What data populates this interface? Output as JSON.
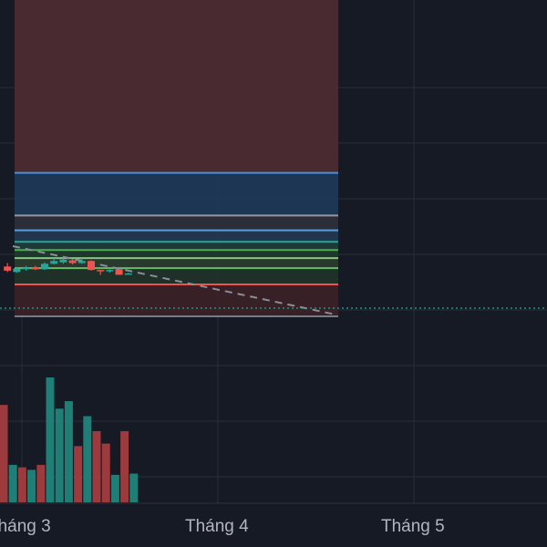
{
  "chart_data": {
    "type": "candlestick",
    "title": "",
    "x_ticks": [
      "Tháng 3",
      "Tháng 4",
      "Tháng 5"
    ],
    "grid": true,
    "colors": {
      "background": "#161a25",
      "grid": "#2a2e39",
      "up": "#26a69a",
      "down": "#ef5350",
      "volume_up": "#1f7f76",
      "volume_down": "#9c3a3d",
      "projection_line": "#8a8e98",
      "last_price_line": "#26a69a"
    },
    "fib_levels": [
      {
        "level": 2.618,
        "line_color": "#4f2a31",
        "fill_color": "#4a2a31"
      },
      {
        "level": 1.618,
        "line_color": "#4a90d9",
        "fill_color": "#1d3a5a"
      },
      {
        "level": 1.0,
        "line_color": "#9598a1",
        "fill_color": "#2d313b"
      },
      {
        "level": 0.786,
        "line_color": "#5aa0e0",
        "fill_color": "#243a52"
      },
      {
        "level": 0.618,
        "line_color": "#26a69a",
        "fill_color": "#1e3d3b"
      },
      {
        "level": 0.5,
        "line_color": "#4caf50",
        "fill_color": "#1f3a2c"
      },
      {
        "level": 0.382,
        "line_color": "#81c784",
        "fill_color": "#2b3d2e"
      },
      {
        "level": 0.236,
        "line_color": "#66bb6a",
        "fill_color": "#1f3328"
      },
      {
        "level": 0.0,
        "line_color": "#ef5350",
        "fill_color": "#3b2127"
      }
    ],
    "candles": [
      {
        "x": 1,
        "open": 0.26,
        "high": 0.31,
        "low": 0.18,
        "close": 0.2
      },
      {
        "x": 2,
        "open": 0.18,
        "high": 0.24,
        "low": 0.17,
        "close": 0.23
      },
      {
        "x": 3,
        "open": 0.23,
        "high": 0.27,
        "low": 0.2,
        "close": 0.24
      },
      {
        "x": 4,
        "open": 0.25,
        "high": 0.27,
        "low": 0.21,
        "close": 0.22
      },
      {
        "x": 5,
        "open": 0.22,
        "high": 0.32,
        "low": 0.21,
        "close": 0.3
      },
      {
        "x": 6,
        "open": 0.3,
        "high": 0.38,
        "low": 0.29,
        "close": 0.34
      },
      {
        "x": 7,
        "open": 0.32,
        "high": 0.38,
        "low": 0.3,
        "close": 0.36
      },
      {
        "x": 8,
        "open": 0.35,
        "high": 0.37,
        "low": 0.29,
        "close": 0.31
      },
      {
        "x": 9,
        "open": 0.31,
        "high": 0.38,
        "low": 0.3,
        "close": 0.34
      },
      {
        "x": 10,
        "open": 0.34,
        "high": 0.35,
        "low": 0.2,
        "close": 0.21
      },
      {
        "x": 11,
        "open": 0.21,
        "high": 0.21,
        "low": 0.14,
        "close": 0.2
      },
      {
        "x": 12,
        "open": 0.19,
        "high": 0.22,
        "low": 0.17,
        "close": 0.21
      },
      {
        "x": 13,
        "open": 0.22,
        "high": 0.22,
        "low": 0.14,
        "close": 0.14
      },
      {
        "x": 14,
        "open": 0.14,
        "high": 0.17,
        "low": 0.14,
        "close": 0.16
      }
    ],
    "volumes": [
      {
        "x": 0,
        "value": 0.78,
        "direction": "down"
      },
      {
        "x": 1,
        "value": 0.3,
        "direction": "up"
      },
      {
        "x": 2,
        "value": 0.28,
        "direction": "down"
      },
      {
        "x": 3,
        "value": 0.26,
        "direction": "up"
      },
      {
        "x": 4,
        "value": 0.3,
        "direction": "down"
      },
      {
        "x": 5,
        "value": 1.0,
        "direction": "up"
      },
      {
        "x": 6,
        "value": 0.75,
        "direction": "up"
      },
      {
        "x": 7,
        "value": 0.81,
        "direction": "up"
      },
      {
        "x": 8,
        "value": 0.45,
        "direction": "down"
      },
      {
        "x": 9,
        "value": 0.69,
        "direction": "up"
      },
      {
        "x": 10,
        "value": 0.57,
        "direction": "down"
      },
      {
        "x": 11,
        "value": 0.47,
        "direction": "down"
      },
      {
        "x": 12,
        "value": 0.22,
        "direction": "up"
      },
      {
        "x": 13,
        "value": 0.57,
        "direction": "down"
      },
      {
        "x": 14,
        "value": 0.23,
        "direction": "up"
      }
    ]
  }
}
